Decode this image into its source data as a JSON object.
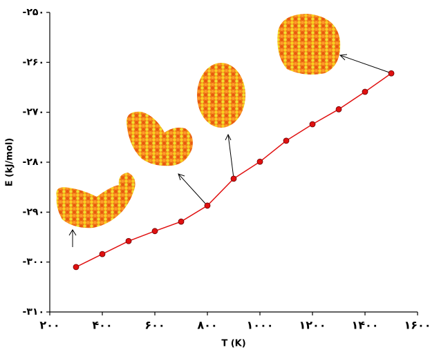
{
  "chart_data": {
    "type": "line",
    "x_label": "T (K)",
    "y_label": "E (kJ/mol)",
    "x": [
      300,
      400,
      500,
      600,
      700,
      800,
      900,
      1000,
      1100,
      1200,
      1300,
      1400,
      1500
    ],
    "series": [
      {
        "color": "#e01010",
        "marker_color": "#e01010",
        "values": [
          -301.0,
          -298.4,
          -295.8,
          -293.8,
          -291.9,
          -288.7,
          -283.3,
          -279.9,
          -275.7,
          -272.4,
          -269.4,
          -265.9,
          -262.2
        ]
      }
    ],
    "xlim": [
      200,
      1600
    ],
    "xticks": [
      {
        "value": 200,
        "label": "۲۰۰"
      },
      {
        "value": 400,
        "label": "۴۰۰"
      },
      {
        "value": 600,
        "label": "۶۰۰"
      },
      {
        "value": 800,
        "label": "۸۰۰"
      },
      {
        "value": 1000,
        "label": "۱۰۰۰"
      },
      {
        "value": 1200,
        "label": "۱۲۰۰"
      },
      {
        "value": 1400,
        "label": "۱۴۰۰"
      },
      {
        "value": 1600,
        "label": "۱۶۰۰"
      }
    ],
    "ylim": [
      -310,
      -250
    ],
    "yticks": [
      {
        "value": -250,
        "label": "-۲۵۰"
      },
      {
        "value": -260,
        "label": "-۲۶۰"
      },
      {
        "value": -270,
        "label": "-۲۷۰"
      },
      {
        "value": -280,
        "label": "-۲۸۰"
      },
      {
        "value": -290,
        "label": "-۲۹۰"
      },
      {
        "value": -300,
        "label": "-۳۰۰"
      },
      {
        "value": -310,
        "label": "-۳۱۰"
      }
    ]
  }
}
